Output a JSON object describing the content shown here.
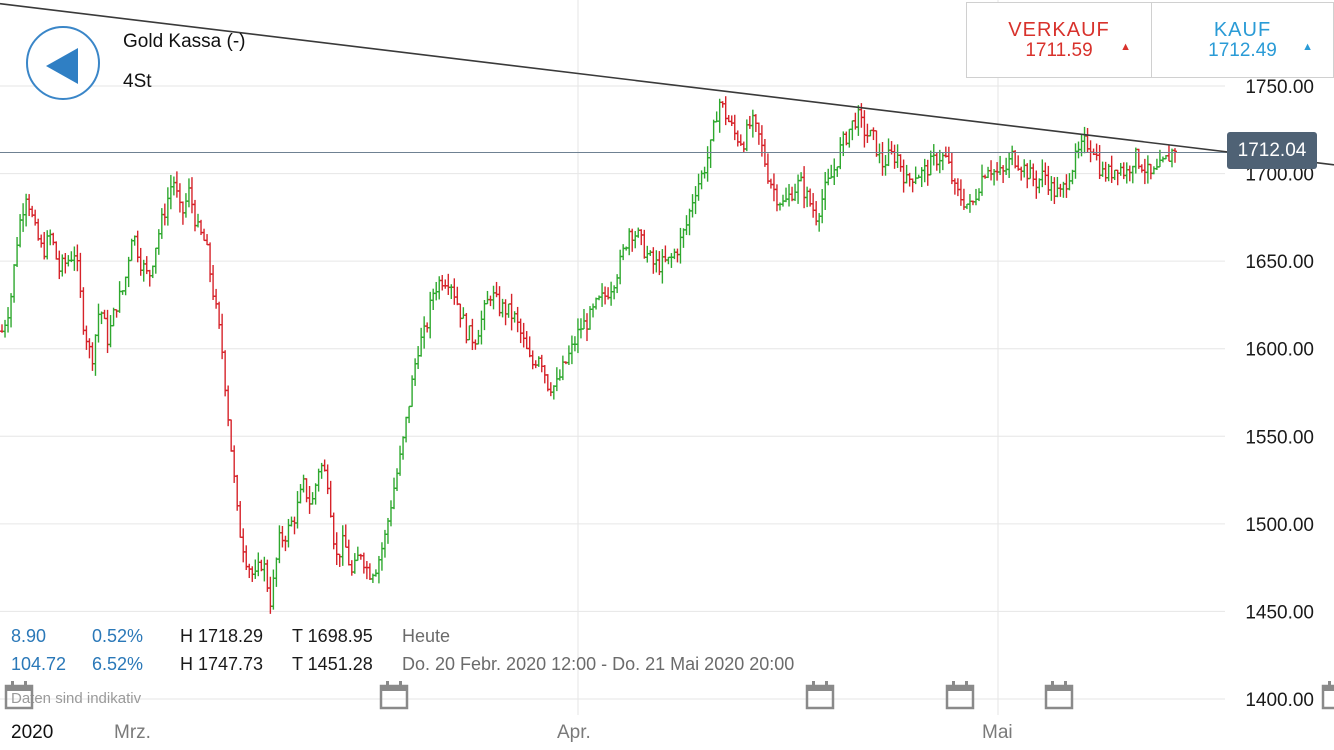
{
  "header": {
    "title": "Gold Kassa (-)",
    "timeframe": "4St"
  },
  "quotes": {
    "sell_label": "VERKAUF",
    "sell_value": "1711.59",
    "buy_label": "KAUF",
    "buy_value": "1712.49"
  },
  "current_price_tag": "1712.04",
  "stats": {
    "day_change": "8.90",
    "day_change_pct": "0.52%",
    "day_high": "H 1718.29",
    "day_low": "T 1698.95",
    "day_label": "Heute",
    "range_change": "104.72",
    "range_change_pct": "6.52%",
    "range_high": "H 1747.73",
    "range_low": "T 1451.28",
    "range_label": "Do. 20 Febr. 2020 12:00 - Do. 21 Mai 2020 20:00"
  },
  "disclaimer": "Daten sind indikativ",
  "icons": {
    "back": "back-arrow-icon",
    "event": "calendar-icon",
    "up": "triangle-up-icon"
  },
  "colors": {
    "up": "#2ea82e",
    "down": "#d6232a",
    "accent": "#2a9bd6",
    "sell": "#d8322c",
    "price_line": "#6f8192",
    "trendline": "#3a3a3a"
  },
  "chart_data": {
    "type": "bar",
    "subtype": "ohlc-bars",
    "instrument": "Gold Kassa (-)",
    "interval": "4St",
    "ylim": [
      1380,
      1760
    ],
    "y_ticks": [
      1750,
      1700,
      1650,
      1600,
      1550,
      1500,
      1450,
      1400
    ],
    "y_tick_labels": [
      "1750.00",
      "1700.00",
      "1650.00",
      "1600.00",
      "1550.00",
      "1500.00",
      "1450.00",
      "1400.00"
    ],
    "x_labels": [
      "2020",
      "Mrz.",
      "Apr.",
      "Mai"
    ],
    "current_price": 1712.04,
    "trendline": {
      "start": 1797,
      "end": 1705
    },
    "grid": true,
    "candle_count": 390,
    "path": [
      1610,
      1626,
      1668,
      1690,
      1668,
      1655,
      1665,
      1645,
      1650,
      1656,
      1615,
      1593,
      1625,
      1605,
      1625,
      1635,
      1668,
      1650,
      1640,
      1662,
      1679,
      1698,
      1675,
      1690,
      1668,
      1660,
      1630,
      1600,
      1550,
      1500,
      1480,
      1468,
      1480,
      1455,
      1490,
      1495,
      1505,
      1522,
      1510,
      1535,
      1525,
      1480,
      1490,
      1470,
      1485,
      1472,
      1476,
      1492,
      1518,
      1540,
      1570,
      1600,
      1610,
      1634,
      1640,
      1640,
      1625,
      1610,
      1605,
      1618,
      1632,
      1624,
      1622,
      1617,
      1604,
      1590,
      1598,
      1580,
      1578,
      1590,
      1600,
      1612,
      1616,
      1625,
      1630,
      1638,
      1650,
      1668,
      1665,
      1655,
      1648,
      1648,
      1650,
      1658,
      1670,
      1690,
      1700,
      1715,
      1742,
      1732,
      1722,
      1718,
      1730,
      1720,
      1700,
      1688,
      1682,
      1690,
      1695,
      1685,
      1676,
      1690,
      1700,
      1715,
      1725,
      1733,
      1723,
      1720,
      1705,
      1710,
      1710,
      1695,
      1700,
      1700,
      1705,
      1710,
      1708,
      1690,
      1685,
      1680,
      1695,
      1705,
      1700,
      1700,
      1710,
      1706,
      1700,
      1695,
      1700,
      1690,
      1688,
      1700,
      1710,
      1718,
      1715,
      1700,
      1700,
      1705,
      1700,
      1710,
      1705,
      1698,
      1702,
      1708,
      1715
    ]
  }
}
